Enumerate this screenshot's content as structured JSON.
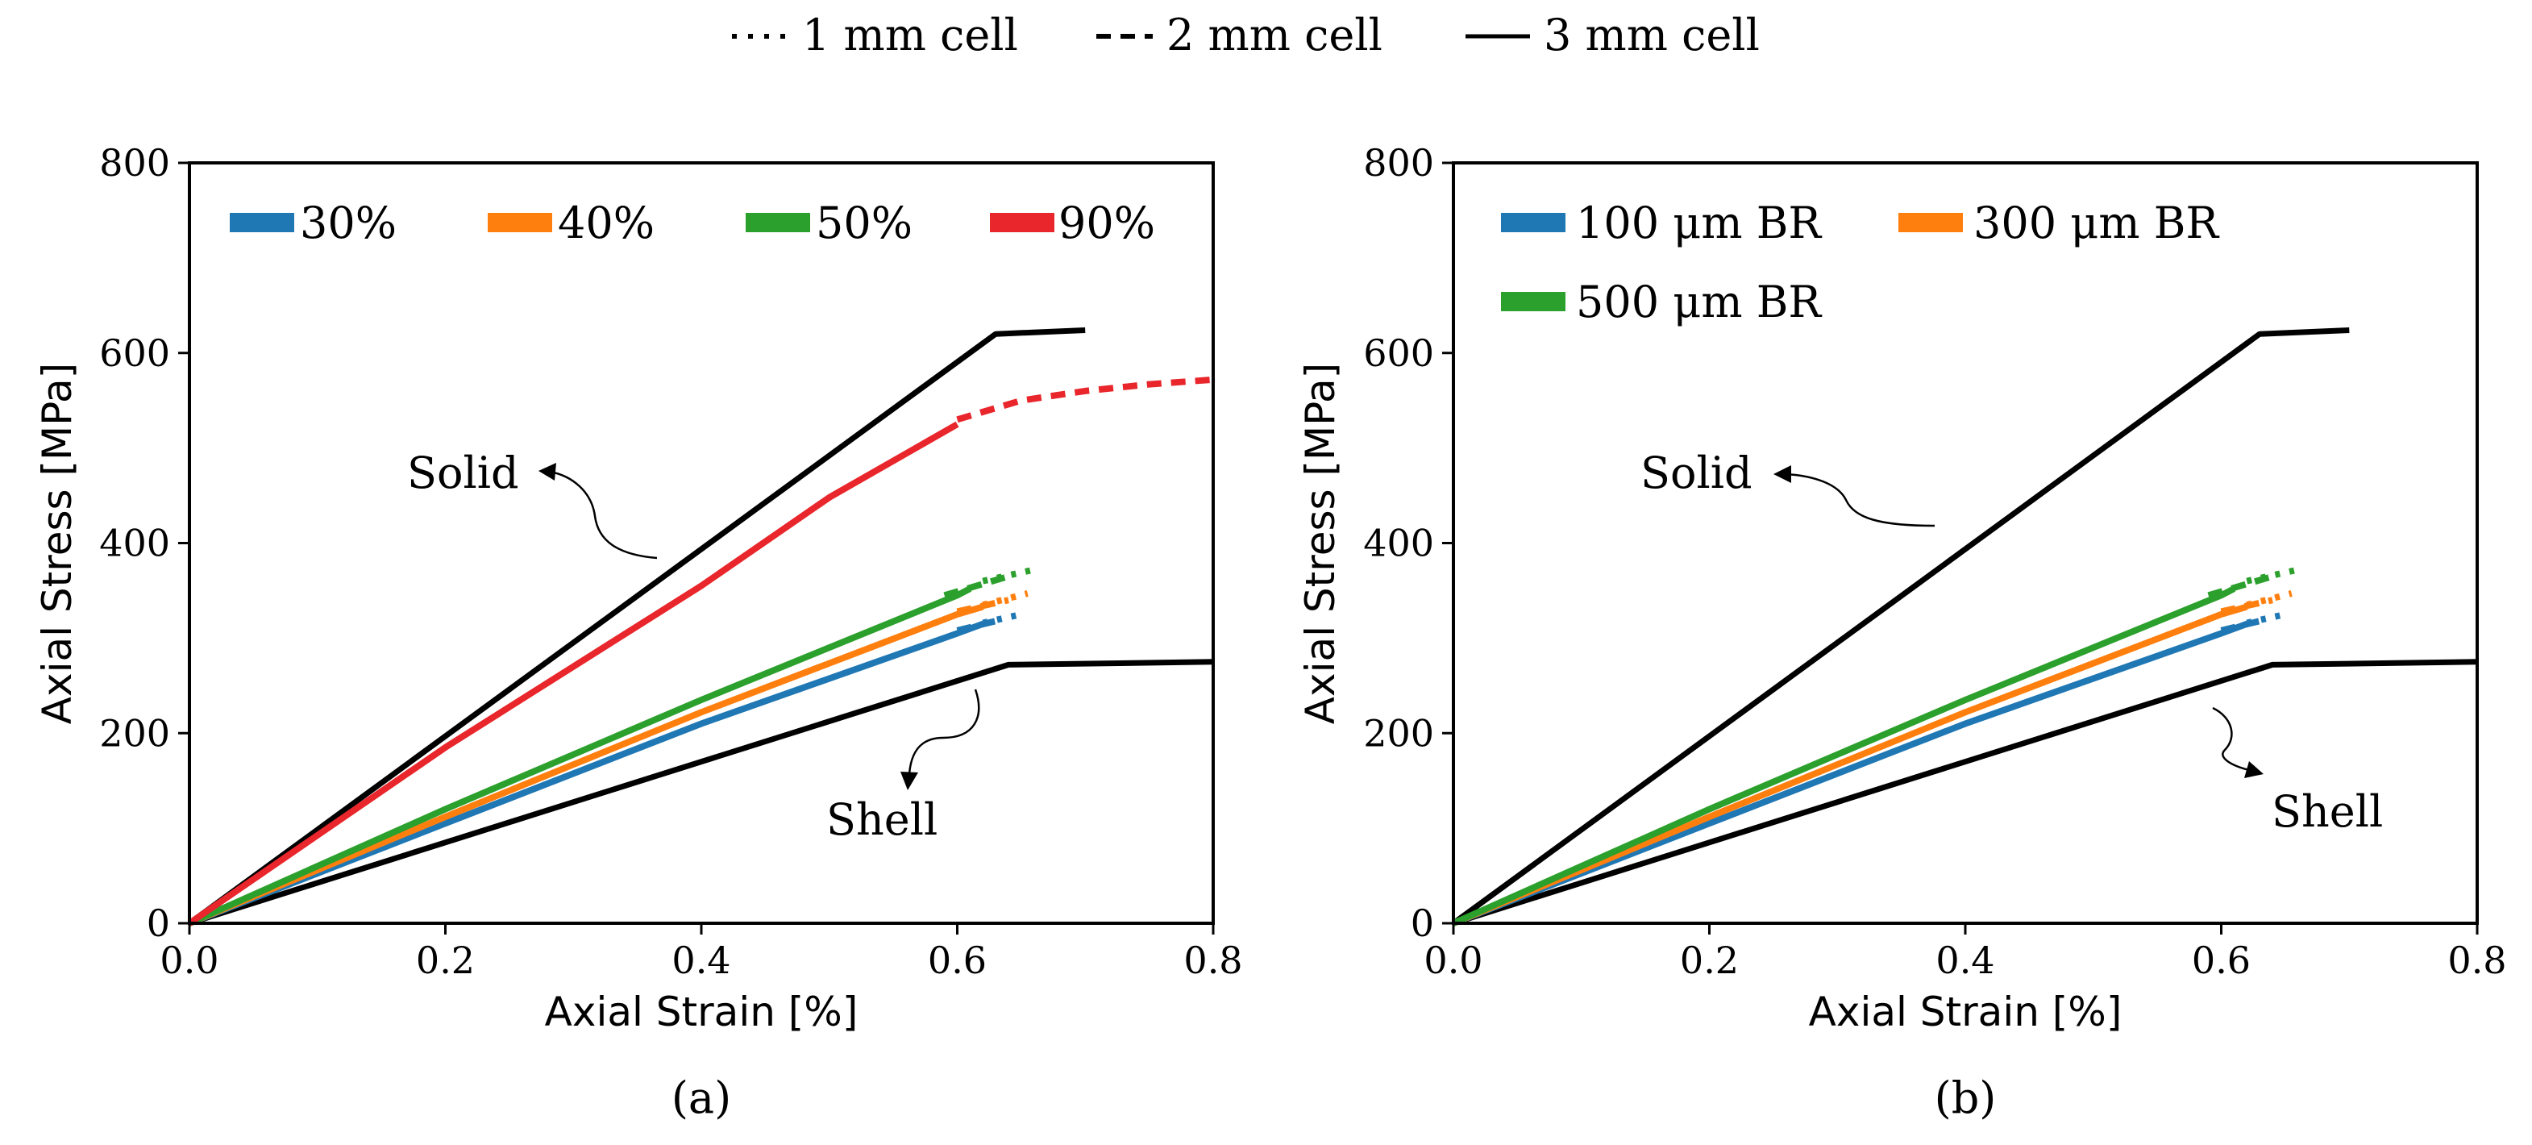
{
  "global_legend": [
    {
      "label": "1 mm cell",
      "style": "dotted"
    },
    {
      "label": "2 mm cell",
      "style": "dashed"
    },
    {
      "label": "3 mm cell",
      "style": "solid"
    }
  ],
  "colors": {
    "black": "#000000",
    "blue": "#1f77b4",
    "orange": "#ff7f0e",
    "green": "#2ca02c",
    "red": "#e8262b"
  },
  "chart_data": [
    {
      "type": "line",
      "caption": "(a)",
      "xlabel": "Axial Strain [%]",
      "ylabel": "Axial Stress [MPa]",
      "xlim": [
        0,
        0.8
      ],
      "ylim": [
        0,
        800
      ],
      "xticks": [
        0.0,
        0.2,
        0.4,
        0.6,
        0.8
      ],
      "yticks": [
        0,
        200,
        400,
        600,
        800
      ],
      "xtick_labels": [
        "0.0",
        "0.2",
        "0.4",
        "0.6",
        "0.8"
      ],
      "ytick_labels": [
        "0",
        "200",
        "400",
        "600",
        "800"
      ],
      "legend": [
        {
          "label": "30%",
          "color": "#1f77b4"
        },
        {
          "label": "40%",
          "color": "#ff7f0e"
        },
        {
          "label": "50%",
          "color": "#2ca02c"
        },
        {
          "label": "90%",
          "color": "#e8262b"
        }
      ],
      "annotations": [
        {
          "text": "Solid",
          "points_to": "Solid curve"
        },
        {
          "text": "Shell",
          "points_to": "Shell curve"
        }
      ],
      "series": [
        {
          "name": "Solid",
          "color": "#000000",
          "style": "solid",
          "x": [
            0,
            0.63,
            0.7
          ],
          "y": [
            0,
            620,
            624
          ]
        },
        {
          "name": "Shell",
          "color": "#000000",
          "style": "solid",
          "x": [
            0,
            0.64,
            0.8
          ],
          "y": [
            0,
            272,
            275
          ]
        },
        {
          "name": "30% 3 mm",
          "color": "#1f77b4",
          "style": "solid",
          "x": [
            0,
            0.2,
            0.4,
            0.6,
            0.62
          ],
          "y": [
            0,
            105,
            210,
            305,
            315
          ]
        },
        {
          "name": "30% 2 mm",
          "color": "#1f77b4",
          "style": "dashed",
          "x": [
            0.6,
            0.63
          ],
          "y": [
            308,
            318
          ]
        },
        {
          "name": "30% 1 mm",
          "color": "#1f77b4",
          "style": "dotted",
          "x": [
            0.62,
            0.65
          ],
          "y": [
            316,
            325
          ]
        },
        {
          "name": "40% 3 mm",
          "color": "#ff7f0e",
          "style": "solid",
          "x": [
            0,
            0.2,
            0.4,
            0.6,
            0.62
          ],
          "y": [
            0,
            112,
            222,
            325,
            333
          ]
        },
        {
          "name": "40% 2 mm",
          "color": "#ff7f0e",
          "style": "dashed",
          "x": [
            0.6,
            0.64
          ],
          "y": [
            328,
            340
          ]
        },
        {
          "name": "40% 1 mm",
          "color": "#ff7f0e",
          "style": "dotted",
          "x": [
            0.62,
            0.655
          ],
          "y": [
            335,
            347
          ]
        },
        {
          "name": "50% 3 mm",
          "color": "#2ca02c",
          "style": "solid",
          "x": [
            0,
            0.2,
            0.4,
            0.6,
            0.61
          ],
          "y": [
            0,
            120,
            235,
            345,
            352
          ]
        },
        {
          "name": "50% 2 mm",
          "color": "#2ca02c",
          "style": "dashed",
          "x": [
            0.59,
            0.64
          ],
          "y": [
            345,
            365
          ]
        },
        {
          "name": "50% 1 mm",
          "color": "#2ca02c",
          "style": "dotted",
          "x": [
            0.62,
            0.66
          ],
          "y": [
            360,
            372
          ]
        },
        {
          "name": "90% 3 mm",
          "color": "#e8262b",
          "style": "solid",
          "x": [
            0,
            0.2,
            0.4,
            0.5,
            0.6
          ],
          "y": [
            0,
            185,
            355,
            448,
            525
          ]
        },
        {
          "name": "90% 2 mm",
          "color": "#e8262b",
          "style": "dashed",
          "x": [
            0.6,
            0.65,
            0.7,
            0.75,
            0.8
          ],
          "y": [
            530,
            550,
            560,
            567,
            572
          ]
        }
      ]
    },
    {
      "type": "line",
      "caption": "(b)",
      "xlabel": "Axial Strain [%]",
      "ylabel": "Axial Stress [MPa]",
      "xlim": [
        0,
        0.8
      ],
      "ylim": [
        0,
        800
      ],
      "xticks": [
        0.0,
        0.2,
        0.4,
        0.6,
        0.8
      ],
      "yticks": [
        0,
        200,
        400,
        600,
        800
      ],
      "xtick_labels": [
        "0.0",
        "0.2",
        "0.4",
        "0.6",
        "0.8"
      ],
      "ytick_labels": [
        "0",
        "200",
        "400",
        "600",
        "800"
      ],
      "legend": [
        {
          "label": "100 μm BR",
          "color": "#1f77b4"
        },
        {
          "label": "300 μm BR",
          "color": "#ff7f0e"
        },
        {
          "label": "500 μm BR",
          "color": "#2ca02c"
        }
      ],
      "annotations": [
        {
          "text": "Solid",
          "points_to": "Solid curve"
        },
        {
          "text": "Shell",
          "points_to": "Shell curve"
        }
      ],
      "series": [
        {
          "name": "Solid",
          "color": "#000000",
          "style": "solid",
          "x": [
            0,
            0.63,
            0.7
          ],
          "y": [
            0,
            620,
            624
          ]
        },
        {
          "name": "Shell",
          "color": "#000000",
          "style": "solid",
          "x": [
            0,
            0.64,
            0.8
          ],
          "y": [
            0,
            272,
            275
          ]
        },
        {
          "name": "100 μm BR 3 mm",
          "color": "#1f77b4",
          "style": "solid",
          "x": [
            0,
            0.2,
            0.4,
            0.6,
            0.62
          ],
          "y": [
            0,
            105,
            210,
            305,
            315
          ]
        },
        {
          "name": "100 μm BR 2 mm",
          "color": "#1f77b4",
          "style": "dashed",
          "x": [
            0.6,
            0.63
          ],
          "y": [
            308,
            318
          ]
        },
        {
          "name": "100 μm BR 1 mm",
          "color": "#1f77b4",
          "style": "dotted",
          "x": [
            0.62,
            0.65
          ],
          "y": [
            316,
            325
          ]
        },
        {
          "name": "300 μm BR 3 mm",
          "color": "#ff7f0e",
          "style": "solid",
          "x": [
            0,
            0.2,
            0.4,
            0.6,
            0.62
          ],
          "y": [
            0,
            112,
            222,
            325,
            333
          ]
        },
        {
          "name": "300 μm BR 2 mm",
          "color": "#ff7f0e",
          "style": "dashed",
          "x": [
            0.6,
            0.64
          ],
          "y": [
            328,
            340
          ]
        },
        {
          "name": "300 μm BR 1 mm",
          "color": "#ff7f0e",
          "style": "dotted",
          "x": [
            0.62,
            0.655
          ],
          "y": [
            335,
            347
          ]
        },
        {
          "name": "500 μm BR 3 mm",
          "color": "#2ca02c",
          "style": "solid",
          "x": [
            0,
            0.2,
            0.4,
            0.6,
            0.61
          ],
          "y": [
            0,
            120,
            235,
            345,
            352
          ]
        },
        {
          "name": "500 μm BR 2 mm",
          "color": "#2ca02c",
          "style": "dashed",
          "x": [
            0.59,
            0.64
          ],
          "y": [
            345,
            365
          ]
        },
        {
          "name": "500 μm BR 1 mm",
          "color": "#2ca02c",
          "style": "dotted",
          "x": [
            0.62,
            0.66
          ],
          "y": [
            360,
            372
          ]
        }
      ]
    }
  ]
}
